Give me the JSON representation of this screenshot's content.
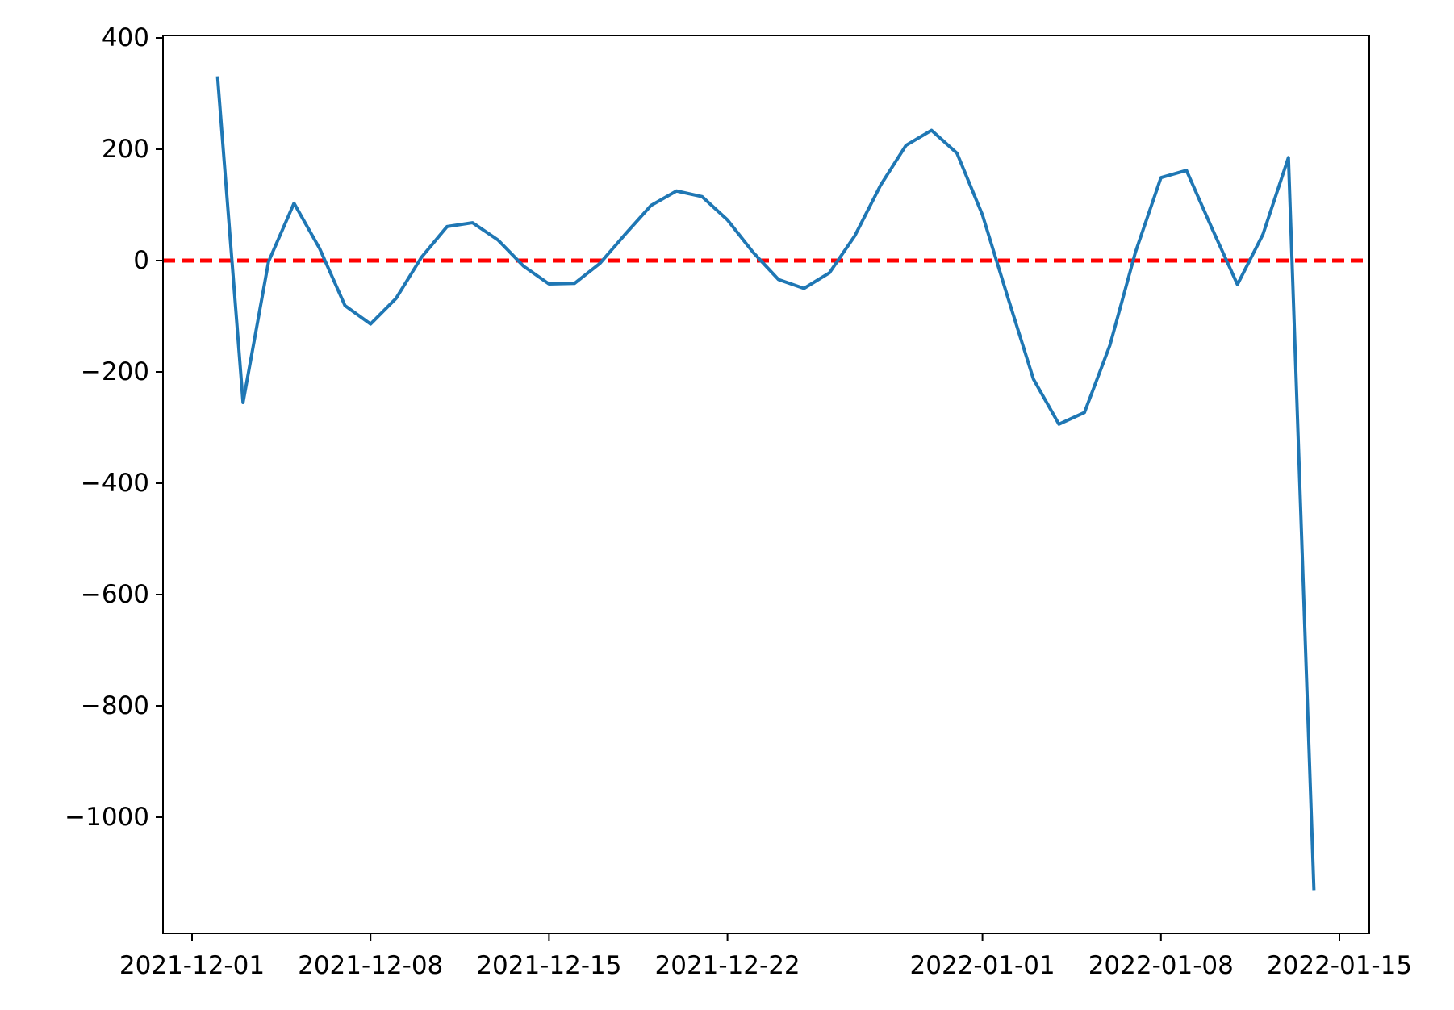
{
  "chart_data": {
    "type": "line",
    "title": "",
    "xlabel": "",
    "ylabel": "",
    "x_axis": {
      "type": "date",
      "range": [
        "2021-11-30",
        "2022-01-16"
      ],
      "ticks": [
        "2021-12-01",
        "2021-12-08",
        "2021-12-15",
        "2021-12-22",
        "2022-01-01",
        "2022-01-08",
        "2022-01-15"
      ]
    },
    "y_axis": {
      "range": [
        -1200,
        400
      ],
      "ticks": [
        400,
        200,
        0,
        -200,
        -400,
        -600,
        -800,
        -1000
      ],
      "tick_labels": [
        "400",
        "200",
        "0",
        "−200",
        "−400",
        "−600",
        "−800",
        "−1000"
      ]
    },
    "grid": false,
    "legend": "none",
    "series": [
      {
        "color": "#1f77b4",
        "points": [
          {
            "x": "2021-12-02",
            "y": 331
          },
          {
            "x": "2021-12-03",
            "y": -255
          },
          {
            "x": "2021-12-04",
            "y": -2
          },
          {
            "x": "2021-12-05",
            "y": 103
          },
          {
            "x": "2021-12-06",
            "y": 22
          },
          {
            "x": "2021-12-07",
            "y": -81
          },
          {
            "x": "2021-12-08",
            "y": -114
          },
          {
            "x": "2021-12-09",
            "y": -68
          },
          {
            "x": "2021-12-10",
            "y": 6
          },
          {
            "x": "2021-12-11",
            "y": 61
          },
          {
            "x": "2021-12-12",
            "y": 68
          },
          {
            "x": "2021-12-13",
            "y": 37
          },
          {
            "x": "2021-12-14",
            "y": -10
          },
          {
            "x": "2021-12-15",
            "y": -42
          },
          {
            "x": "2021-12-16",
            "y": -41
          },
          {
            "x": "2021-12-17",
            "y": -5
          },
          {
            "x": "2021-12-18",
            "y": 48
          },
          {
            "x": "2021-12-19",
            "y": 99
          },
          {
            "x": "2021-12-20",
            "y": 125
          },
          {
            "x": "2021-12-21",
            "y": 115
          },
          {
            "x": "2021-12-22",
            "y": 73
          },
          {
            "x": "2021-12-23",
            "y": 15
          },
          {
            "x": "2021-12-24",
            "y": -34
          },
          {
            "x": "2021-12-25",
            "y": -50
          },
          {
            "x": "2021-12-26",
            "y": -22
          },
          {
            "x": "2021-12-27",
            "y": 45
          },
          {
            "x": "2021-12-28",
            "y": 135
          },
          {
            "x": "2021-12-29",
            "y": 207
          },
          {
            "x": "2021-12-30",
            "y": 234
          },
          {
            "x": "2021-12-31",
            "y": 193
          },
          {
            "x": "2022-01-01",
            "y": 82
          },
          {
            "x": "2022-01-02",
            "y": -67
          },
          {
            "x": "2022-01-03",
            "y": -213
          },
          {
            "x": "2022-01-04",
            "y": -294
          },
          {
            "x": "2022-01-05",
            "y": -273
          },
          {
            "x": "2022-01-06",
            "y": -152
          },
          {
            "x": "2022-01-07",
            "y": 15
          },
          {
            "x": "2022-01-08",
            "y": 149
          },
          {
            "x": "2022-01-09",
            "y": 162
          },
          {
            "x": "2022-01-10",
            "y": 58
          },
          {
            "x": "2022-01-11",
            "y": -43
          },
          {
            "x": "2022-01-12",
            "y": 47
          },
          {
            "x": "2022-01-13",
            "y": 185
          },
          {
            "x": "2022-01-14",
            "y": -1131
          }
        ]
      }
    ],
    "reference_lines": [
      {
        "axis": "y",
        "value": 0,
        "color": "#ff0000",
        "style": "dashed"
      }
    ]
  }
}
